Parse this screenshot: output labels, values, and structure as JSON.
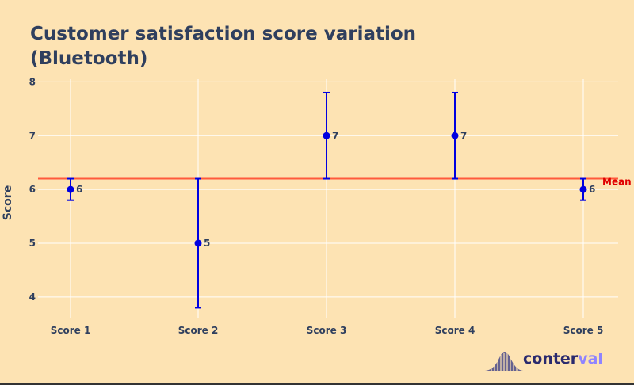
{
  "title_line1": "Customer satisfaction score variation",
  "title_line2": "(Bluetooth)",
  "logo": {
    "text_main": "conter",
    "text_accent": "val"
  },
  "colors": {
    "background": "#fde3b3",
    "points": "#0000e0",
    "mean_line": "#ff5a3c",
    "mean_label": "#e00000",
    "text": "#2f3f5e",
    "grid": "#ffffff"
  },
  "chart_data": {
    "type": "scatter",
    "title": "Customer satisfaction score variation (Bluetooth)",
    "xlabel": "",
    "ylabel": "Score",
    "categories": [
      "Score 1",
      "Score 2",
      "Score 3",
      "Score 4",
      "Score 5"
    ],
    "values": [
      6,
      5,
      7,
      7,
      6
    ],
    "data_labels": [
      "6",
      "5",
      "7",
      "7",
      "6"
    ],
    "error_low": [
      5.8,
      3.8,
      6.2,
      6.2,
      5.8
    ],
    "error_high": [
      6.2,
      6.2,
      7.8,
      7.8,
      6.2
    ],
    "mean": 6.2,
    "mean_label": "Mean",
    "ylim": [
      3.6,
      8.05
    ],
    "yticks": [
      4,
      5,
      6,
      7,
      8
    ],
    "grid": true
  }
}
